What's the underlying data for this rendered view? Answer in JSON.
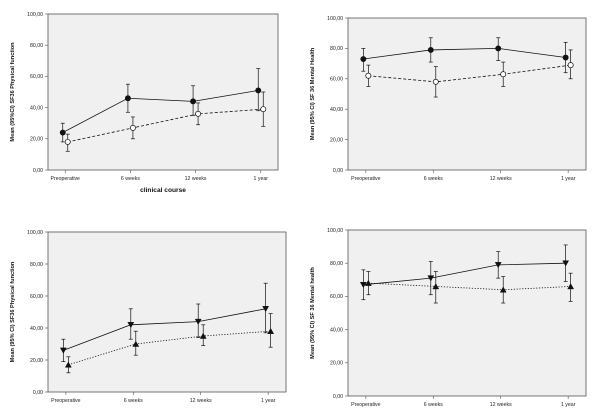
{
  "chart_data": [
    {
      "type": "line",
      "marker": "circle",
      "plot_bg": "#f0f0f0",
      "x": [
        "Preoperative",
        "6 weeks",
        "12 weeks",
        "1 year"
      ],
      "ylabel": "Mean (95%CI) SF36 Physical function",
      "xlabel": "clinical course",
      "y_ticks": [
        "0,00",
        "20,00",
        "40,00",
        "60,00",
        "80,00",
        "100,00"
      ],
      "ylim": [
        0,
        100
      ],
      "series": [
        {
          "style": "solid",
          "fill": "filled",
          "values": [
            24,
            46,
            44,
            51
          ],
          "ci_low": [
            18,
            37,
            35,
            38
          ],
          "ci_high": [
            30,
            55,
            54,
            65
          ]
        },
        {
          "style": "dashed",
          "fill": "open",
          "values": [
            18,
            27,
            36,
            39
          ],
          "ci_low": [
            12,
            20,
            29,
            28
          ],
          "ci_high": [
            23,
            34,
            43,
            50
          ]
        }
      ]
    },
    {
      "type": "line",
      "marker": "circle",
      "plot_bg": "#f0f0f0",
      "x": [
        "Preoperative",
        "6 weeks",
        "12 weeks",
        "1 year"
      ],
      "ylabel": "Mean (95% CI) SF 36 Mental Health",
      "xlabel": "",
      "y_ticks": [
        "0,00",
        "20,00",
        "40,00",
        "60,00",
        "80,00",
        "100,00"
      ],
      "ylim": [
        0,
        100
      ],
      "series": [
        {
          "style": "solid",
          "fill": "filled",
          "values": [
            73,
            79,
            80,
            74
          ],
          "ci_low": [
            65,
            71,
            72,
            64
          ],
          "ci_high": [
            80,
            87,
            87,
            84
          ]
        },
        {
          "style": "dashed",
          "fill": "open",
          "values": [
            62,
            58,
            63,
            69
          ],
          "ci_low": [
            55,
            48,
            55,
            60
          ],
          "ci_high": [
            69,
            68,
            71,
            79
          ]
        }
      ]
    },
    {
      "type": "line",
      "marker": "triangle",
      "plot_bg": "#f0f0f0",
      "x": [
        "Preoperative",
        "6 weeks",
        "12 weeks",
        "1 year"
      ],
      "ylabel": "Mean (95% CI) SF36 Physical function",
      "xlabel": "",
      "y_ticks": [
        "0,00",
        "20,00",
        "40,00",
        "60,00",
        "80,00",
        "100,00"
      ],
      "ylim": [
        0,
        100
      ],
      "series": [
        {
          "style": "solid",
          "fill": "filled",
          "marker": "triangle-down",
          "values": [
            26,
            42,
            44,
            52
          ],
          "ci_low": [
            19,
            33,
            34,
            37
          ],
          "ci_high": [
            33,
            52,
            55,
            68
          ]
        },
        {
          "style": "dotted",
          "fill": "filled",
          "marker": "triangle-up",
          "values": [
            17,
            30,
            35,
            38
          ],
          "ci_low": [
            12,
            23,
            29,
            28
          ],
          "ci_high": [
            22,
            38,
            42,
            49
          ]
        }
      ]
    },
    {
      "type": "line",
      "marker": "triangle",
      "plot_bg": "#f0f0f0",
      "x": [
        "Preoperative",
        "6 weeks",
        "12 weeks",
        "1 year"
      ],
      "ylabel": "Mean (95% CI) SF 36 Mental health",
      "xlabel": "",
      "y_ticks": [
        "0,00",
        "20,00",
        "40,00",
        "60,00",
        "80,00",
        "100,00"
      ],
      "ylim": [
        0,
        100
      ],
      "series": [
        {
          "style": "solid",
          "fill": "filled",
          "marker": "triangle-down",
          "values": [
            67,
            71,
            79,
            80
          ],
          "ci_low": [
            58,
            61,
            71,
            69
          ],
          "ci_high": [
            76,
            81,
            87,
            91
          ]
        },
        {
          "style": "dotted",
          "fill": "filled",
          "marker": "triangle-up",
          "values": [
            68,
            66,
            64,
            66
          ],
          "ci_low": [
            61,
            56,
            56,
            57
          ],
          "ci_high": [
            75,
            75,
            72,
            74
          ]
        }
      ]
    }
  ]
}
